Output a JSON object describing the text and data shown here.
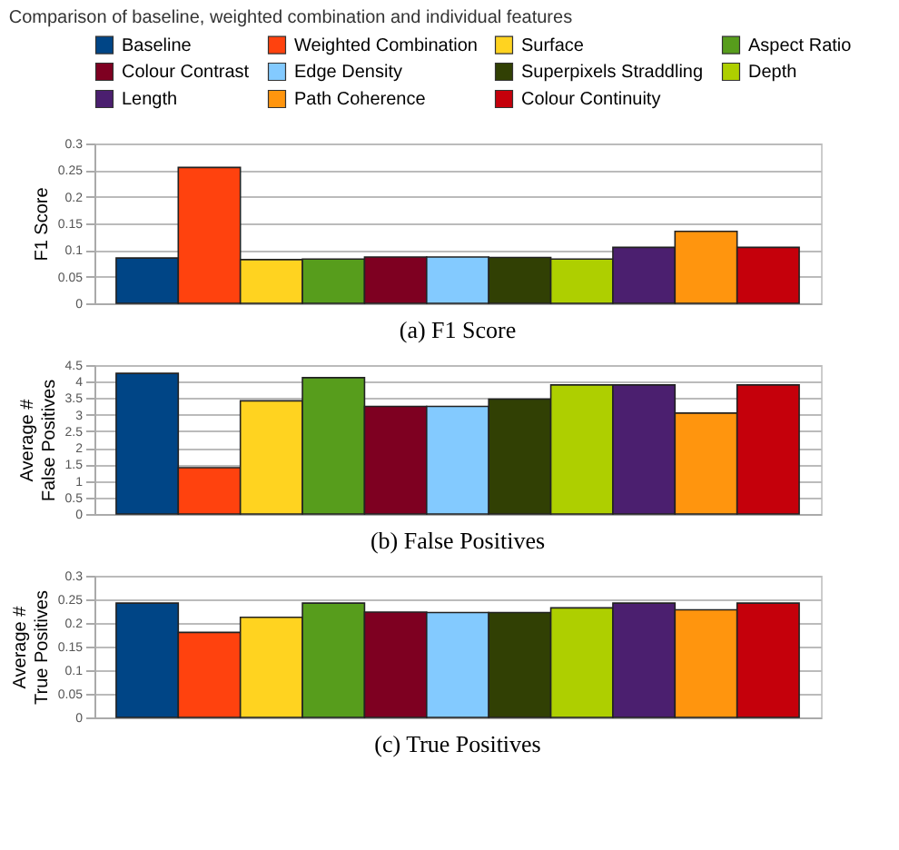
{
  "chart_data": [
    {
      "type": "bar",
      "title": "Comparison of baseline, weighted combination and individual features",
      "ylabel": "F1 Score",
      "annotations": [
        "(a) F1 Score"
      ],
      "categories": [
        null
      ],
      "ylim": [
        0,
        0.3
      ],
      "yticks": [
        0,
        0.05,
        0.1,
        0.15,
        0.2,
        0.25,
        0.3
      ],
      "grid": "y",
      "legend": "top",
      "tick_labels": "y",
      "series": [
        {
          "name": "Baseline",
          "color": "#004586",
          "values": [
            0.085
          ]
        },
        {
          "name": "Weighted Combination",
          "color": "#ff420e",
          "values": [
            0.255
          ]
        },
        {
          "name": "Surface",
          "color": "#ffd320",
          "values": [
            0.082
          ]
        },
        {
          "name": "Aspect Ratio",
          "color": "#579d1c",
          "values": [
            0.083
          ]
        },
        {
          "name": "Colour Contrast",
          "color": "#7e0021",
          "values": [
            0.087
          ]
        },
        {
          "name": "Edge Density",
          "color": "#83caff",
          "values": [
            0.087
          ]
        },
        {
          "name": "Superpixels Straddling",
          "color": "#314004",
          "values": [
            0.086
          ]
        },
        {
          "name": "Depth",
          "color": "#aecf00",
          "values": [
            0.083
          ]
        },
        {
          "name": "Length",
          "color": "#4b1f6f",
          "values": [
            0.105
          ]
        },
        {
          "name": "Path Coherence",
          "color": "#ff950e",
          "values": [
            0.135
          ]
        },
        {
          "name": "Colour Continuity",
          "color": "#c5000b",
          "values": [
            0.105
          ]
        }
      ]
    },
    {
      "type": "bar",
      "ylabel": "Average #\nFalse Positives",
      "annotations": [
        "(b) False Positives"
      ],
      "categories": [
        null,
        null,
        null,
        null,
        null,
        null,
        null,
        null,
        null,
        null,
        null
      ],
      "ylim": [
        0,
        4.5
      ],
      "yticks": [
        0,
        0.5,
        1,
        1.5,
        2,
        2.5,
        3,
        3.5,
        4,
        4.5
      ],
      "grid": "y",
      "tick_labels": "y",
      "values": [
        4.25,
        1.4,
        3.42,
        4.12,
        3.25,
        3.25,
        3.47,
        3.9,
        3.9,
        3.05,
        3.9
      ],
      "colors": [
        "#004586",
        "#ff420e",
        "#ffd320",
        "#579d1c",
        "#7e0021",
        "#83caff",
        "#314004",
        "#aecf00",
        "#4b1f6f",
        "#ff950e",
        "#c5000b"
      ]
    },
    {
      "type": "bar",
      "ylabel": "Average #\nTrue Positives",
      "annotations": [
        "(c) True Positives"
      ],
      "categories": [
        null,
        null,
        null,
        null,
        null,
        null,
        null,
        null,
        null,
        null,
        null
      ],
      "ylim": [
        0,
        0.3
      ],
      "yticks": [
        0,
        0.05,
        0.1,
        0.15,
        0.2,
        0.25,
        0.3
      ],
      "grid": "y",
      "tick_labels": "y",
      "values": [
        0.242,
        0.18,
        0.212,
        0.242,
        0.223,
        0.222,
        0.222,
        0.232,
        0.242,
        0.228,
        0.242
      ],
      "colors": [
        "#004586",
        "#ff420e",
        "#ffd320",
        "#579d1c",
        "#7e0021",
        "#83caff",
        "#314004",
        "#aecf00",
        "#4b1f6f",
        "#ff950e",
        "#c5000b"
      ]
    }
  ]
}
